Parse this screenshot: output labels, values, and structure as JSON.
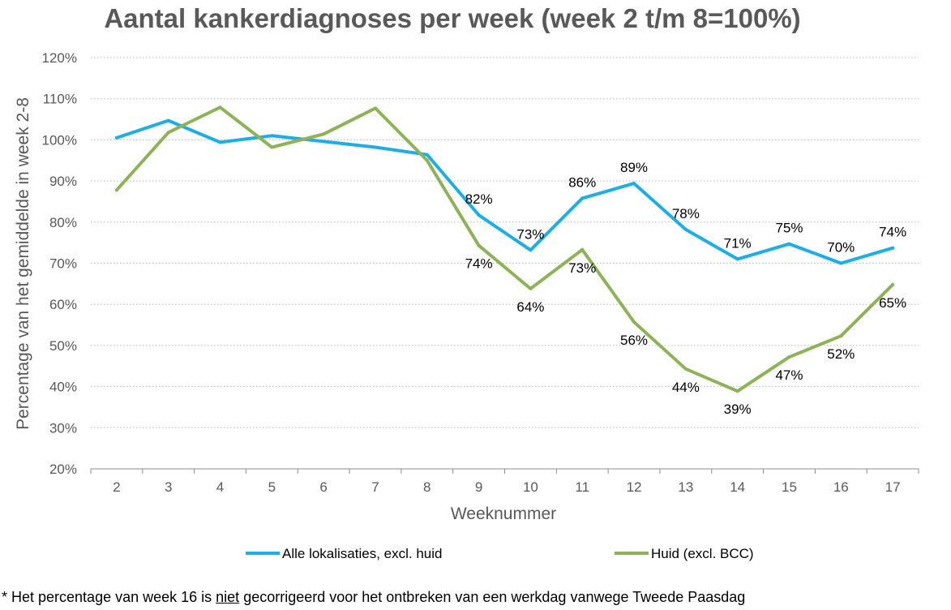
{
  "chart_data": {
    "type": "line",
    "title": "Aantal kankerdiagnoses per week (week 2 t/m 8=100%)",
    "xlabel": "Weeknummer",
    "ylabel": "Percentage van het gemiddelde in week 2-8",
    "x": [
      2,
      3,
      4,
      5,
      6,
      7,
      8,
      9,
      10,
      11,
      12,
      13,
      14,
      15,
      16,
      17
    ],
    "ylim": [
      20,
      120
    ],
    "yticks": [
      "20%",
      "30%",
      "40%",
      "50%",
      "60%",
      "70%",
      "80%",
      "90%",
      "100%",
      "110%",
      "120%"
    ],
    "grid": "horizontal-dotted",
    "legend": "bottom",
    "series": [
      {
        "name": "Alle lokalisaties, excl. huid",
        "color": "#1CAEE4",
        "values": [
          100.5,
          104.7,
          99.4,
          101.0,
          99.6,
          98.2,
          96.4,
          81.7,
          73.2,
          85.8,
          89.4,
          78.2,
          71.0,
          74.7,
          70.0,
          73.7
        ],
        "data_labels": [
          {
            "index": 7,
            "text": "82%"
          },
          {
            "index": 8,
            "text": "73%"
          },
          {
            "index": 9,
            "text": "86%"
          },
          {
            "index": 10,
            "text": "89%"
          },
          {
            "index": 11,
            "text": "78%"
          },
          {
            "index": 12,
            "text": "71%"
          },
          {
            "index": 13,
            "text": "75%"
          },
          {
            "index": 14,
            "text": "70%"
          },
          {
            "index": 15,
            "text": "74%"
          }
        ]
      },
      {
        "name": "Huid (excl. BCC)",
        "color": "#8DB356",
        "values": [
          87.8,
          101.8,
          107.9,
          98.2,
          101.4,
          107.7,
          95.0,
          74.3,
          63.8,
          73.3,
          55.7,
          44.3,
          38.9,
          47.2,
          52.3,
          64.8
        ],
        "data_labels": [
          {
            "index": 7,
            "text": "74%"
          },
          {
            "index": 8,
            "text": "64%"
          },
          {
            "index": 9,
            "text": "73%"
          },
          {
            "index": 10,
            "text": "56%"
          },
          {
            "index": 11,
            "text": "44%"
          },
          {
            "index": 12,
            "text": "39%"
          },
          {
            "index": 13,
            "text": "47%"
          },
          {
            "index": 14,
            "text": "52%"
          },
          {
            "index": 15,
            "text": "65%"
          }
        ]
      }
    ]
  },
  "footnote": {
    "prefix": "* Het percentage van week 16 is ",
    "emphasis": "niet",
    "suffix": " gecorrigeerd voor het ontbreken van een werkdag vanwege Tweede Paasdag"
  }
}
